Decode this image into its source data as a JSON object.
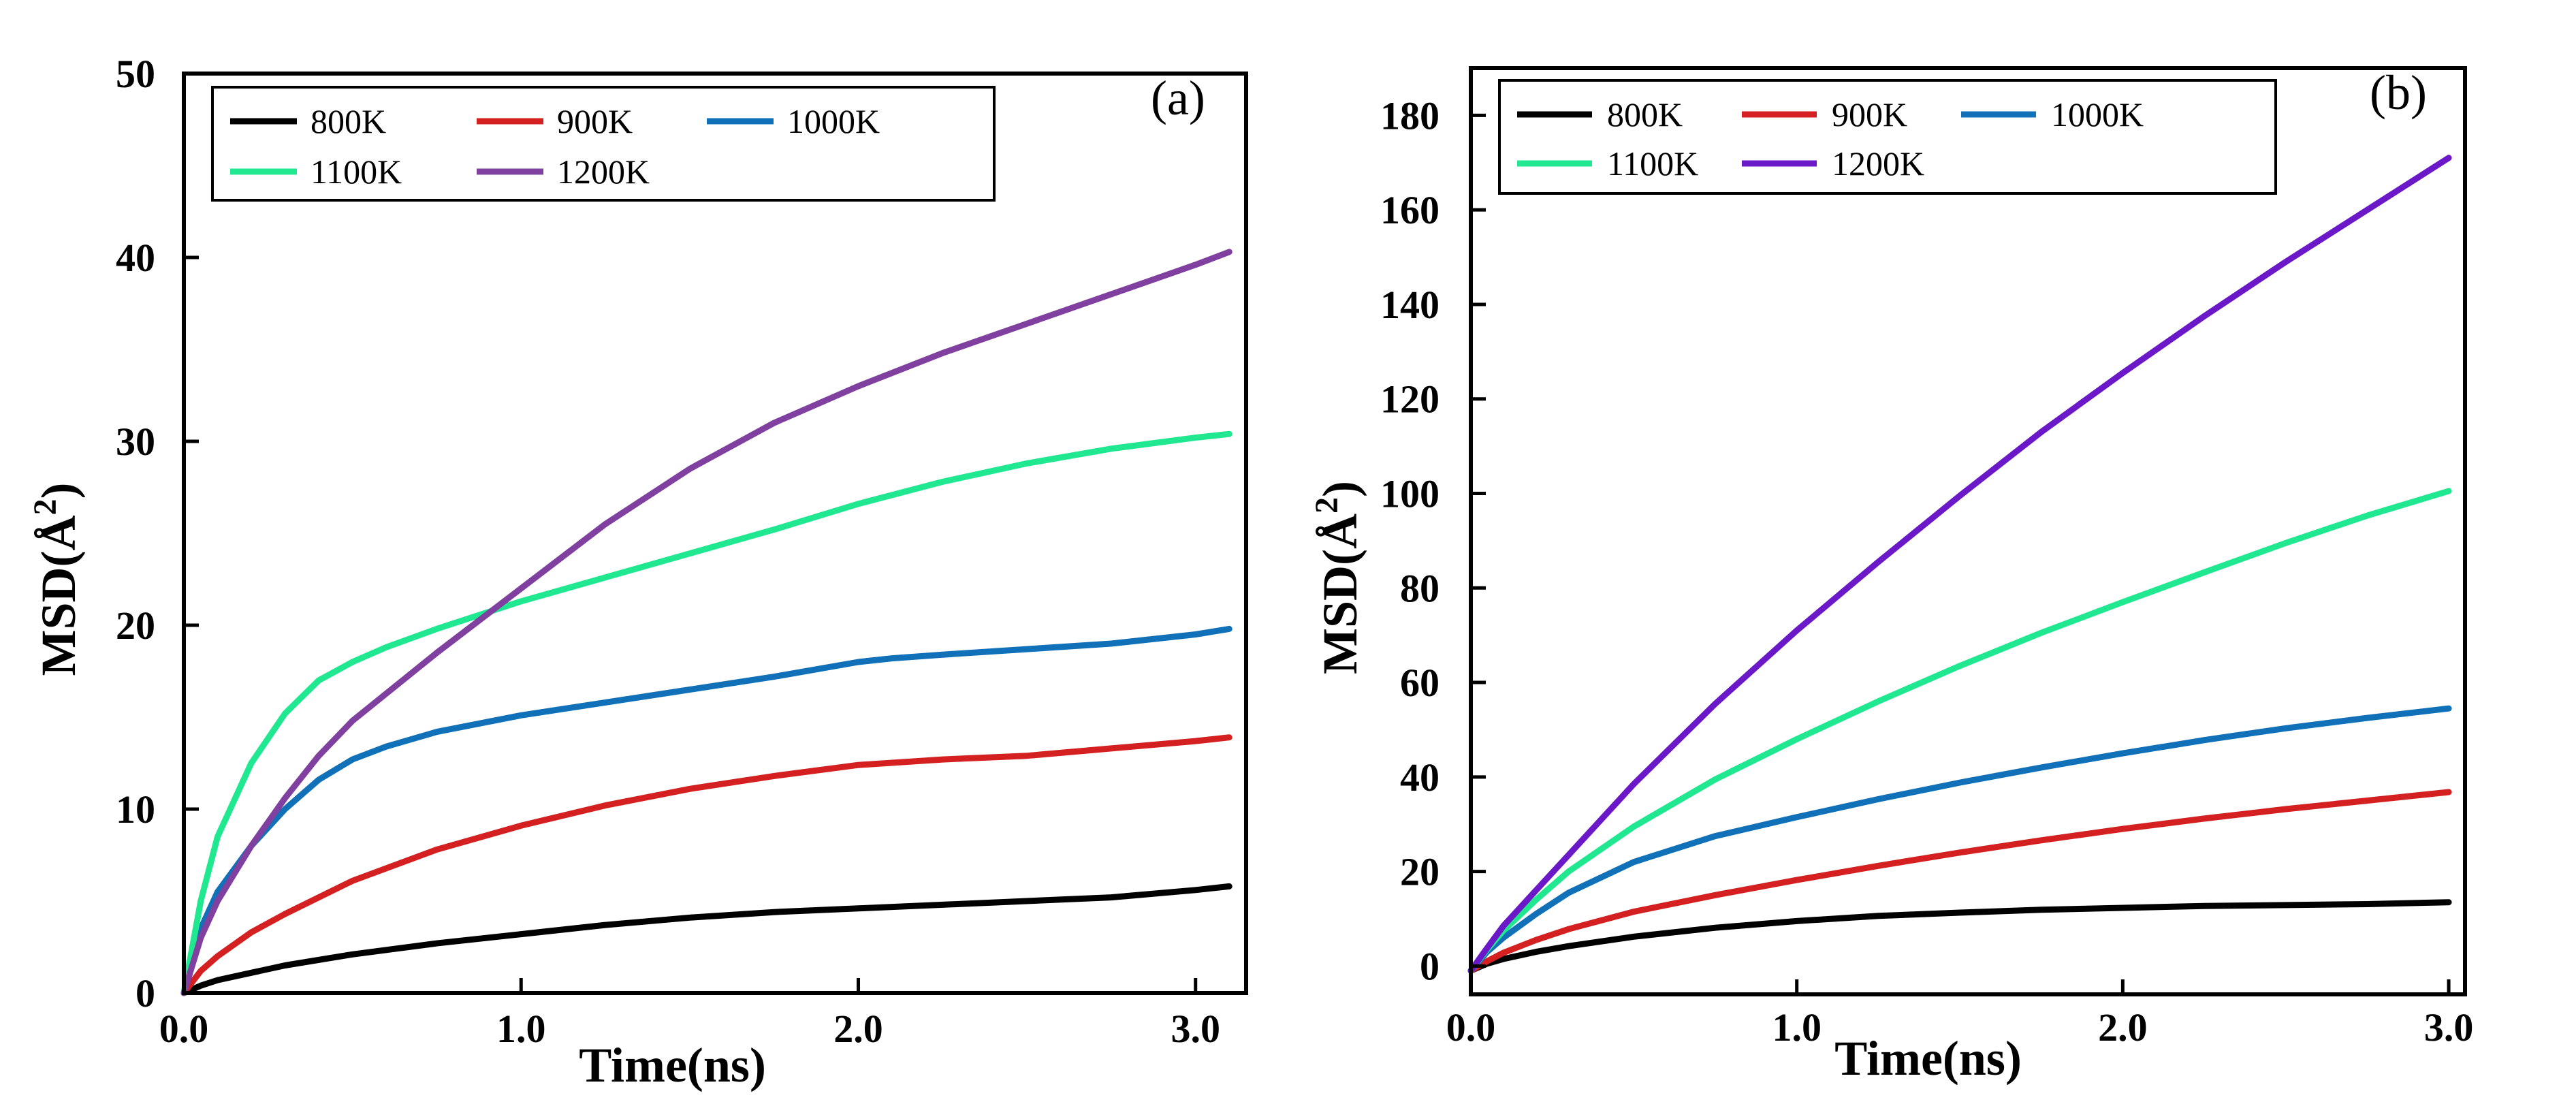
{
  "chart_data": [
    {
      "type": "line",
      "panel_label": "(a)",
      "xlabel": "Time(ns)",
      "ylabel_main": "MSD(Å",
      "ylabel_sup": "2",
      "ylabel_close": ")",
      "xlim": [
        0.0,
        3.15
      ],
      "ylim": [
        0,
        50
      ],
      "xticks": [
        0.0,
        1.0,
        2.0,
        3.0
      ],
      "xtick_labels": [
        "0.0",
        "1.0",
        "2.0",
        "3.0"
      ],
      "yticks": [
        0,
        10,
        20,
        30,
        40,
        50
      ],
      "ytick_labels": [
        "0",
        "10",
        "20",
        "30",
        "40",
        "50"
      ],
      "legend_position": "top-left",
      "series": [
        {
          "name": "800K",
          "color": "#000000",
          "x": [
            0,
            0.05,
            0.1,
            0.2,
            0.3,
            0.5,
            0.75,
            1.0,
            1.25,
            1.5,
            1.75,
            2.0,
            2.25,
            2.5,
            2.75,
            3.0,
            3.1
          ],
          "y": [
            0,
            0.4,
            0.7,
            1.1,
            1.5,
            2.1,
            2.7,
            3.2,
            3.7,
            4.1,
            4.4,
            4.6,
            4.8,
            5.0,
            5.2,
            5.6,
            5.8
          ]
        },
        {
          "name": "900K",
          "color": "#d42020",
          "x": [
            0,
            0.05,
            0.1,
            0.2,
            0.3,
            0.5,
            0.75,
            1.0,
            1.25,
            1.5,
            1.75,
            2.0,
            2.25,
            2.5,
            2.75,
            3.0,
            3.1
          ],
          "y": [
            0,
            1.2,
            2.0,
            3.3,
            4.3,
            6.1,
            7.8,
            9.1,
            10.2,
            11.1,
            11.8,
            12.4,
            12.7,
            12.9,
            13.3,
            13.7,
            13.9
          ]
        },
        {
          "name": "1000K",
          "color": "#1070b8",
          "x": [
            0,
            0.05,
            0.1,
            0.2,
            0.3,
            0.4,
            0.5,
            0.6,
            0.75,
            1.0,
            1.25,
            1.5,
            1.75,
            2.0,
            2.1,
            2.25,
            2.5,
            2.75,
            3.0,
            3.1
          ],
          "y": [
            0,
            3.5,
            5.5,
            8.0,
            10.0,
            11.6,
            12.7,
            13.4,
            14.2,
            15.1,
            15.8,
            16.5,
            17.2,
            18.0,
            18.2,
            18.4,
            18.7,
            19.0,
            19.5,
            19.8
          ]
        },
        {
          "name": "1100K",
          "color": "#20e890",
          "x": [
            0,
            0.05,
            0.1,
            0.2,
            0.3,
            0.4,
            0.5,
            0.6,
            0.75,
            1.0,
            1.25,
            1.5,
            1.75,
            2.0,
            2.25,
            2.5,
            2.75,
            3.0,
            3.1
          ],
          "y": [
            0,
            5.0,
            8.5,
            12.5,
            15.2,
            17.0,
            18.0,
            18.8,
            19.8,
            21.3,
            22.6,
            23.9,
            25.2,
            26.6,
            27.8,
            28.8,
            29.6,
            30.2,
            30.4
          ]
        },
        {
          "name": "1200K",
          "color": "#8040a0",
          "x": [
            0,
            0.05,
            0.1,
            0.2,
            0.3,
            0.4,
            0.5,
            0.75,
            1.0,
            1.25,
            1.5,
            1.75,
            2.0,
            2.25,
            2.5,
            2.75,
            3.0,
            3.1
          ],
          "y": [
            0,
            3.0,
            5.0,
            8.0,
            10.6,
            12.9,
            14.8,
            18.5,
            22.0,
            25.5,
            28.5,
            31.0,
            33.0,
            34.8,
            36.4,
            38.0,
            39.6,
            40.3
          ]
        }
      ]
    },
    {
      "type": "line",
      "panel_label": "(b)",
      "xlabel": "Time(ns)",
      "ylabel_main": "MSD(Å",
      "ylabel_sup": "2",
      "ylabel_close": ")",
      "xlim": [
        0.0,
        3.05
      ],
      "ylim": [
        -6,
        190
      ],
      "xticks": [
        0.0,
        1.0,
        2.0,
        3.0
      ],
      "xtick_labels": [
        "0.0",
        "1.0",
        "2.0",
        "3.0"
      ],
      "yticks": [
        0,
        20,
        40,
        60,
        80,
        100,
        120,
        140,
        160,
        180
      ],
      "ytick_labels": [
        "0",
        "20",
        "40",
        "60",
        "80",
        "100",
        "120",
        "140",
        "160",
        "180"
      ],
      "legend_position": "top-left",
      "series": [
        {
          "name": "800K",
          "color": "#000000",
          "x": [
            0,
            0.05,
            0.1,
            0.2,
            0.3,
            0.5,
            0.75,
            1.0,
            1.25,
            1.5,
            1.75,
            2.0,
            2.25,
            2.5,
            2.75,
            3.0
          ],
          "y": [
            -1,
            0.5,
            1.5,
            3.0,
            4.2,
            6.2,
            8.1,
            9.5,
            10.6,
            11.3,
            11.9,
            12.3,
            12.7,
            12.9,
            13.1,
            13.5
          ]
        },
        {
          "name": "900K",
          "color": "#d42020",
          "x": [
            0,
            0.05,
            0.1,
            0.2,
            0.3,
            0.5,
            0.75,
            1.0,
            1.25,
            1.5,
            1.75,
            2.0,
            2.25,
            2.5,
            2.75,
            3.0
          ],
          "y": [
            -1,
            1.0,
            2.8,
            5.5,
            7.8,
            11.5,
            15.0,
            18.2,
            21.2,
            24.0,
            26.6,
            29.0,
            31.2,
            33.2,
            35.0,
            36.8
          ]
        },
        {
          "name": "1000K",
          "color": "#1070b8",
          "x": [
            0,
            0.05,
            0.1,
            0.2,
            0.3,
            0.5,
            0.75,
            1.0,
            1.25,
            1.5,
            1.75,
            2.0,
            2.25,
            2.5,
            2.75,
            3.0
          ],
          "y": [
            -1,
            3.0,
            6.0,
            11.0,
            15.5,
            22.0,
            27.5,
            31.5,
            35.3,
            38.8,
            42.0,
            45.0,
            47.8,
            50.3,
            52.5,
            54.5
          ]
        },
        {
          "name": "1100K",
          "color": "#20e890",
          "x": [
            0,
            0.05,
            0.1,
            0.2,
            0.3,
            0.5,
            0.75,
            1.0,
            1.25,
            1.5,
            1.75,
            2.0,
            2.25,
            2.5,
            2.75,
            3.0
          ],
          "y": [
            -1,
            3.5,
            7.5,
            14.0,
            20.0,
            29.5,
            39.5,
            48.0,
            56.0,
            63.5,
            70.5,
            77.0,
            83.3,
            89.5,
            95.3,
            100.5
          ]
        },
        {
          "name": "1200K",
          "color": "#6a18c8",
          "x": [
            0,
            0.05,
            0.1,
            0.2,
            0.3,
            0.5,
            0.75,
            1.0,
            1.25,
            1.5,
            1.75,
            2.0,
            2.25,
            2.5,
            2.75,
            3.0
          ],
          "y": [
            -1,
            3.8,
            8.5,
            16.0,
            23.5,
            38.5,
            55.5,
            71.0,
            85.5,
            99.5,
            113.0,
            125.5,
            137.5,
            149.0,
            160.0,
            171.0
          ]
        }
      ]
    }
  ]
}
